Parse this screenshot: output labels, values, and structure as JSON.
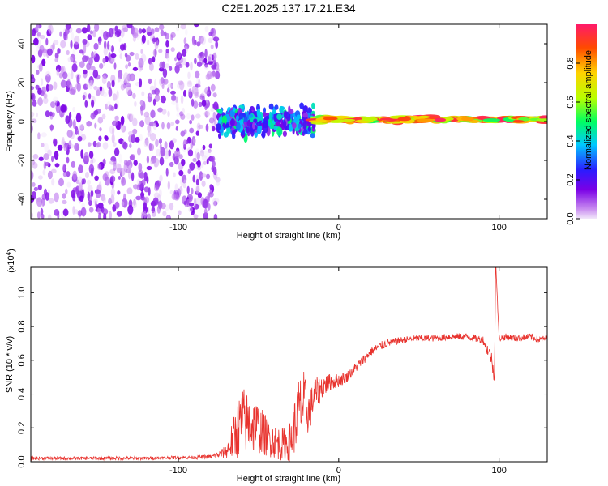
{
  "figure": {
    "title": "C2E1.2025.137.17.21.E34"
  },
  "colorbar": {
    "label": "Normalized spectral amplitude",
    "ticks": [
      "0.0",
      "0.2",
      "0.4",
      "0.6",
      "0.8"
    ],
    "tick_values": [
      0.0,
      0.2,
      0.4,
      0.6,
      0.8
    ],
    "range": [
      0,
      1
    ]
  },
  "chart_data": [
    {
      "type": "heatmap",
      "title": "",
      "xlabel": "Height of straight line (km)",
      "ylabel": "Frequency (Hz)",
      "xlim": [
        -192,
        130
      ],
      "ylim": [
        -50,
        50
      ],
      "xticks": [
        -100,
        0,
        100
      ],
      "xtick_labels": [
        "-100",
        "0",
        "100"
      ],
      "yticks": [
        -40,
        -20,
        0,
        20,
        40
      ],
      "ytick_labels": [
        "-40",
        "-20",
        "0",
        "20",
        "40"
      ],
      "colormap": "rainbow (purple = 0, red = 1)",
      "regions": [
        {
          "x_range": [
            -192,
            -75
          ],
          "freq_range": [
            -50,
            50
          ],
          "amplitude_range": [
            0.0,
            0.15
          ],
          "description_values": "scattered low-amplitude noise"
        },
        {
          "x_range": [
            -75,
            -15
          ],
          "freq_range": [
            -10,
            10
          ],
          "amplitude_range": [
            0.1,
            0.5
          ],
          "center_freq": 0
        },
        {
          "x_range": [
            -15,
            130
          ],
          "freq_range": [
            -2,
            2
          ],
          "amplitude_range": [
            0.5,
            1.0
          ],
          "center_freq": 1
        }
      ],
      "grid": false
    },
    {
      "type": "line",
      "title": "",
      "xlabel": "Height of straight line (km)",
      "ylabel": "SNR (10 * v/v)",
      "y_multiplier_label": "(x10",
      "y_multiplier_exp": "4",
      "xlim": [
        -192,
        130
      ],
      "ylim": [
        0,
        1.15
      ],
      "xticks": [
        -100,
        0,
        100
      ],
      "xtick_labels": [
        "-100",
        "0",
        "100"
      ],
      "yticks": [
        0.0,
        0.2,
        0.4,
        0.6,
        0.8,
        1.0
      ],
      "ytick_labels": [
        "0.0",
        "0.2",
        "0.4",
        "0.6",
        "0.8",
        "1.0"
      ],
      "series": [
        {
          "color": "#e8332e",
          "x": [
            -192,
            -180,
            -160,
            -140,
            -120,
            -100,
            -90,
            -80,
            -75,
            -70,
            -65,
            -60,
            -55,
            -50,
            -45,
            -40,
            -35,
            -30,
            -25,
            -22,
            -20,
            -18,
            -15,
            -12,
            -10,
            -5,
            0,
            5,
            10,
            15,
            20,
            25,
            30,
            40,
            50,
            60,
            70,
            80,
            90,
            95,
            97,
            98,
            100,
            105,
            110,
            120,
            125,
            130
          ],
          "y": [
            0.02,
            0.02,
            0.02,
            0.02,
            0.02,
            0.025,
            0.025,
            0.03,
            0.04,
            0.06,
            0.15,
            0.25,
            0.22,
            0.2,
            0.15,
            0.12,
            0.1,
            0.12,
            0.3,
            0.35,
            0.3,
            0.3,
            0.4,
            0.42,
            0.45,
            0.47,
            0.48,
            0.5,
            0.55,
            0.6,
            0.65,
            0.68,
            0.7,
            0.72,
            0.73,
            0.73,
            0.74,
            0.74,
            0.72,
            0.62,
            0.5,
            1.15,
            0.73,
            0.74,
            0.73,
            0.74,
            0.72,
            0.73
          ],
          "noise": [
            0.01,
            0.01,
            0.01,
            0.01,
            0.01,
            0.01,
            0.01,
            0.012,
            0.02,
            0.04,
            0.15,
            0.2,
            0.18,
            0.15,
            0.12,
            0.1,
            0.1,
            0.12,
            0.2,
            0.2,
            0.15,
            0.12,
            0.1,
            0.08,
            0.07,
            0.05,
            0.04,
            0.035,
            0.03,
            0.03,
            0.025,
            0.025,
            0.025,
            0.02,
            0.02,
            0.02,
            0.02,
            0.02,
            0.025,
            0.05,
            0.04,
            0.0,
            0.02,
            0.02,
            0.02,
            0.02,
            0.02,
            0.02
          ]
        }
      ],
      "grid": false
    }
  ]
}
